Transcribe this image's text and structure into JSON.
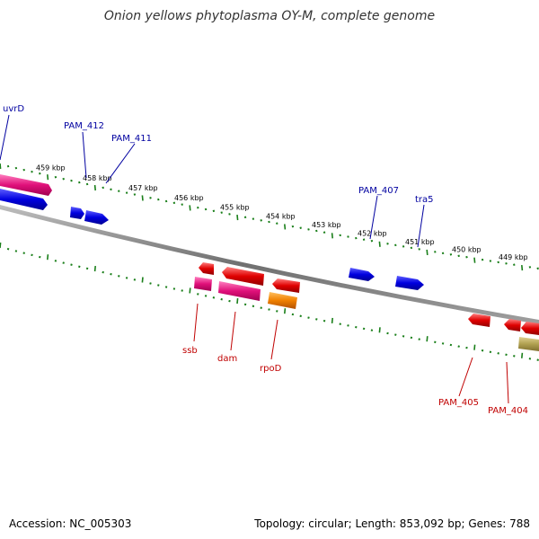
{
  "title": "Onion yellows phytoplasma OY-M, complete genome",
  "accession": "Accession: NC_005303",
  "summary": "Topology: circular; Length: 853,092 bp; Genes: 788",
  "colors": {
    "backbone": "#808080",
    "tick": "#1a7f1a",
    "label_forward": "#0000a0",
    "label_reverse": "#c00000",
    "cds_blue": "#0000e0",
    "cds_pink": "#e0107a",
    "cds_red": "#e00000",
    "cds_orange": "#f08000",
    "cds_khaki": "#b0a050"
  },
  "scale_labels": [
    "459 kbp",
    "458 kbp",
    "457 kbp",
    "456 kbp",
    "455 kbp",
    "454 kbp",
    "453 kbp",
    "452 kbp",
    "451 kbp",
    "450 kbp",
    "449 kbp"
  ],
  "forward_labels": [
    "uvrD",
    "PAM_412",
    "PAM_411",
    "PAM_407",
    "tra5"
  ],
  "reverse_labels": [
    "ssb",
    "dam",
    "rpoD",
    "PAM_405",
    "PAM_404"
  ]
}
